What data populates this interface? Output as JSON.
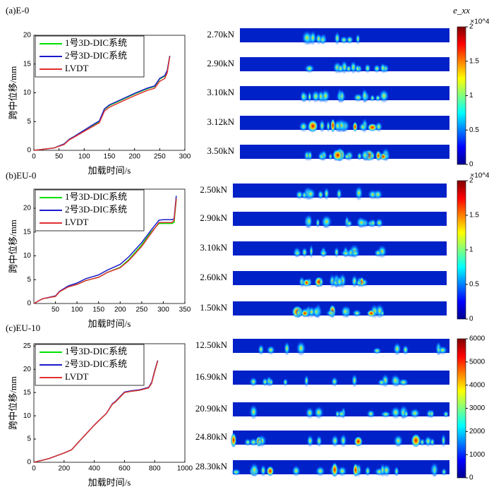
{
  "chart_data": [
    {
      "type": "line",
      "title": "(a)E-0",
      "x_label": "加载时间/s",
      "y_label": "跨中位移/mm",
      "x": [
        0,
        20,
        40,
        60,
        70,
        80,
        100,
        120,
        130,
        140,
        150,
        175,
        200,
        225,
        240,
        250,
        260,
        265,
        270
      ],
      "xlim": [
        0,
        300
      ],
      "xticks": [
        0,
        50,
        100,
        150,
        200,
        250,
        300
      ],
      "ylim": [
        0,
        20
      ],
      "yticks": [
        0,
        5,
        10,
        15,
        20
      ],
      "series": [
        {
          "name": "1号3D-DIC系统",
          "color": "#00e000",
          "values": [
            0,
            0.2,
            0.4,
            1.1,
            1.9,
            2.4,
            3.5,
            4.5,
            5.0,
            7.1,
            7.8,
            8.8,
            9.8,
            10.7,
            11.1,
            12.4,
            12.9,
            13.8,
            16.4
          ]
        },
        {
          "name": "2号3D-DIC系统",
          "color": "#1a1acc",
          "values": [
            0,
            0.2,
            0.4,
            1.1,
            1.9,
            2.4,
            3.5,
            4.6,
            5.1,
            7.2,
            7.9,
            8.9,
            9.9,
            10.8,
            11.2,
            12.5,
            13.0,
            13.9,
            16.4
          ]
        },
        {
          "name": "LVDT",
          "color": "#e03030",
          "values": [
            0,
            0.2,
            0.4,
            1.0,
            1.8,
            2.3,
            3.3,
            4.3,
            4.8,
            6.8,
            7.5,
            8.5,
            9.5,
            10.4,
            10.8,
            12.0,
            12.5,
            13.5,
            16.3
          ]
        }
      ]
    },
    {
      "type": "line",
      "title": "(b)EU-0",
      "x_label": "加载时间/s",
      "y_label": "跨中位移/mm",
      "x": [
        0,
        10,
        20,
        50,
        60,
        80,
        100,
        120,
        150,
        170,
        200,
        220,
        250,
        270,
        290,
        300,
        320,
        325,
        330
      ],
      "xlim": [
        0,
        350
      ],
      "xticks": [
        50,
        100,
        150,
        200,
        250,
        300,
        350
      ],
      "ylim": [
        0,
        24
      ],
      "yticks": [
        0,
        5,
        10,
        15,
        20
      ],
      "series": [
        {
          "name": "1号3D-DIC系统",
          "color": "#00e000",
          "values": [
            0,
            0.5,
            1.0,
            1.5,
            2.5,
            3.5,
            4.0,
            4.8,
            5.5,
            6.5,
            7.6,
            9.2,
            12.3,
            14.8,
            16.8,
            16.8,
            16.8,
            17.0,
            21.8
          ]
        },
        {
          "name": "2号3D-DIC系统",
          "color": "#1a1acc",
          "values": [
            0,
            0.5,
            1.0,
            1.6,
            2.6,
            3.7,
            4.3,
            5.2,
            6.0,
            7.0,
            8.2,
            9.8,
            12.8,
            15.2,
            17.5,
            17.6,
            17.6,
            17.8,
            22.6
          ]
        },
        {
          "name": "LVDT",
          "color": "#e03030",
          "values": [
            0,
            0.5,
            1.0,
            1.5,
            2.5,
            3.5,
            4.0,
            4.8,
            5.5,
            6.5,
            7.5,
            9.0,
            12.0,
            14.5,
            17.0,
            17.0,
            17.0,
            17.5,
            22.0
          ]
        }
      ]
    },
    {
      "type": "line",
      "title": "(c)EU-10",
      "x_label": "加载时间/s",
      "y_label": "跨中位移/mm",
      "x": [
        0,
        100,
        200,
        250,
        300,
        400,
        480,
        520,
        540,
        600,
        650,
        700,
        760,
        780,
        800,
        820
      ],
      "xlim": [
        0,
        1000
      ],
      "xticks": [
        0,
        200,
        400,
        600,
        800,
        1000
      ],
      "ylim": [
        0,
        25.5
      ],
      "yticks": [
        0,
        5,
        10,
        15,
        20,
        25
      ],
      "series": [
        {
          "name": "1号3D-DIC系统",
          "color": "#00e000",
          "values": [
            0,
            0.8,
            2.0,
            2.7,
            4.5,
            8.0,
            10.5,
            12.5,
            13.0,
            15.0,
            15.3,
            15.5,
            16.0,
            17.0,
            19.5,
            21.8
          ]
        },
        {
          "name": "2号3D-DIC系统",
          "color": "#1a1acc",
          "values": [
            0,
            0.8,
            2.0,
            2.7,
            4.5,
            8.0,
            10.5,
            12.6,
            13.1,
            15.1,
            15.4,
            15.6,
            16.1,
            17.2,
            19.7,
            21.9
          ]
        },
        {
          "name": "LVDT",
          "color": "#e03030",
          "values": [
            0,
            0.8,
            2.0,
            2.7,
            4.5,
            8.0,
            10.5,
            12.5,
            13.0,
            15.0,
            15.3,
            15.5,
            16.0,
            17.0,
            19.5,
            21.8
          ]
        }
      ]
    }
  ],
  "strain_maps": [
    {
      "loads": [
        "2.70kN",
        "2.90kN",
        "3.10kN",
        "3.12kN",
        "3.50kN"
      ],
      "colorbar": {
        "title": "e_xx",
        "multiplier": "×10^4",
        "lim": [
          0,
          2
        ],
        "ticks": [
          0,
          0.5,
          1,
          1.5,
          2
        ]
      }
    },
    {
      "loads": [
        "2.50kN",
        "2.90kN",
        "3.10kN",
        "2.60kN",
        "1.50kN"
      ],
      "colorbar": {
        "multiplier": "×10^4",
        "lim": [
          0,
          2
        ],
        "ticks": [
          0,
          0.5,
          1,
          1.5,
          2
        ]
      }
    },
    {
      "loads": [
        "12.50kN",
        "16.90kN",
        "20.90kN",
        "24.80kN",
        "28.30kN"
      ],
      "colorbar": {
        "lim": [
          0,
          6000
        ],
        "ticks": [
          0,
          1000,
          2000,
          3000,
          4000,
          5000,
          6000
        ]
      }
    }
  ]
}
